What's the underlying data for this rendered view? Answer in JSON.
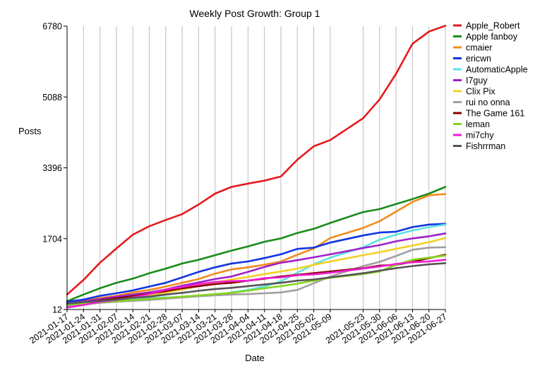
{
  "chart_data": {
    "type": "line",
    "title": "Weekly Post Growth: Group 1",
    "xlabel": "Date",
    "ylabel": "Posts",
    "ylim": [
      12,
      6780
    ],
    "yticks": [
      12,
      1704,
      3396,
      5088,
      6780
    ],
    "grid": "vertical",
    "legend_position": "right",
    "x": [
      "2021-01-17",
      "2021-01-24",
      "2021-01-31",
      "2021-02-07",
      "2021-02-14",
      "2021-02-21",
      "2021-02-28",
      "2021-03-07",
      "2021-03-14",
      "2021-03-21",
      "2021-03-28",
      "2021-04-04",
      "2021-04-11",
      "2021-04-18",
      "2021-04-25",
      "2021-05-02",
      "2021-05-09",
      "2021-05-23",
      "2021-05-30",
      "2021-06-06",
      "2021-06-13",
      "2021-06-20",
      "2021-06-27"
    ],
    "x_days": [
      0,
      7,
      14,
      21,
      28,
      35,
      42,
      49,
      56,
      63,
      70,
      77,
      84,
      91,
      98,
      105,
      112,
      126,
      133,
      140,
      147,
      154,
      161
    ],
    "series": [
      {
        "name": "Apple_Robert",
        "color": "#e41a1c",
        "values": [
          370,
          720,
          1130,
          1470,
          1800,
          2000,
          2150,
          2290,
          2520,
          2780,
          2940,
          3020,
          3090,
          3190,
          3590,
          3910,
          4060,
          4580,
          5030,
          5640,
          6360,
          6650,
          6790
        ]
      },
      {
        "name": "Apple fanboy",
        "color": "#1a8c1a",
        "values": [
          210,
          370,
          520,
          650,
          750,
          880,
          990,
          1110,
          1200,
          1310,
          1420,
          1520,
          1630,
          1710,
          1840,
          1940,
          2080,
          2340,
          2410,
          2530,
          2650,
          2780,
          2940
        ]
      },
      {
        "name": "cmaier",
        "color": "#f08c1e",
        "values": [
          160,
          230,
          290,
          340,
          420,
          480,
          560,
          650,
          740,
          870,
          970,
          1020,
          1080,
          1160,
          1320,
          1470,
          1720,
          1960,
          2120,
          2350,
          2580,
          2740,
          2770
        ]
      },
      {
        "name": "ericwn",
        "color": "#1035e0",
        "values": [
          200,
          250,
          340,
          400,
          470,
          560,
          650,
          780,
          910,
          1020,
          1110,
          1160,
          1240,
          1330,
          1460,
          1490,
          1610,
          1780,
          1850,
          1870,
          1980,
          2040,
          2060
        ]
      },
      {
        "name": "AutomaticApple",
        "color": "#5ce0e0",
        "values": [
          100,
          140,
          180,
          220,
          250,
          280,
          300,
          310,
          330,
          360,
          420,
          480,
          560,
          690,
          890,
          1090,
          1250,
          1500,
          1680,
          1800,
          1900,
          1980,
          2040
        ]
      },
      {
        "name": "I7guy",
        "color": "#a020c8",
        "values": [
          150,
          210,
          260,
          320,
          370,
          420,
          490,
          580,
          660,
          740,
          800,
          910,
          1030,
          1130,
          1190,
          1260,
          1330,
          1480,
          1550,
          1640,
          1710,
          1760,
          1830
        ]
      },
      {
        "name": "Clix Pix",
        "color": "#f2d024",
        "values": [
          110,
          160,
          200,
          260,
          300,
          360,
          420,
          490,
          570,
          660,
          730,
          790,
          860,
          920,
          990,
          1080,
          1160,
          1310,
          1380,
          1460,
          1540,
          1620,
          1720
        ]
      },
      {
        "name": "rui no onna",
        "color": "#a0a0a0",
        "values": [
          90,
          130,
          170,
          200,
          220,
          240,
          270,
          300,
          330,
          350,
          370,
          380,
          400,
          420,
          480,
          640,
          800,
          1050,
          1150,
          1290,
          1440,
          1490,
          1500
        ]
      },
      {
        "name": "The Game 161",
        "color": "#8b0000",
        "values": [
          130,
          170,
          230,
          280,
          330,
          390,
          450,
          520,
          570,
          620,
          650,
          700,
          750,
          800,
          840,
          880,
          920,
          1000,
          1060,
          1080,
          1150,
          1240,
          1320
        ]
      },
      {
        "name": "leman",
        "color": "#86d41e",
        "values": [
          130,
          160,
          190,
          210,
          240,
          260,
          290,
          320,
          350,
          380,
          410,
          460,
          520,
          570,
          630,
          700,
          770,
          860,
          920,
          1080,
          1200,
          1250,
          1300
        ]
      },
      {
        "name": "mi7chy",
        "color": "#f01ed4",
        "values": [
          60,
          120,
          200,
          240,
          300,
          380,
          490,
          550,
          620,
          670,
          690,
          700,
          760,
          780,
          830,
          850,
          890,
          990,
          1040,
          1100,
          1140,
          1160,
          1200
        ]
      },
      {
        "name": "Fishrrman",
        "color": "#555555",
        "values": [
          150,
          190,
          220,
          250,
          290,
          320,
          370,
          410,
          460,
          500,
          530,
          570,
          610,
          650,
          700,
          730,
          780,
          880,
          940,
          1000,
          1050,
          1090,
          1120
        ]
      }
    ]
  }
}
